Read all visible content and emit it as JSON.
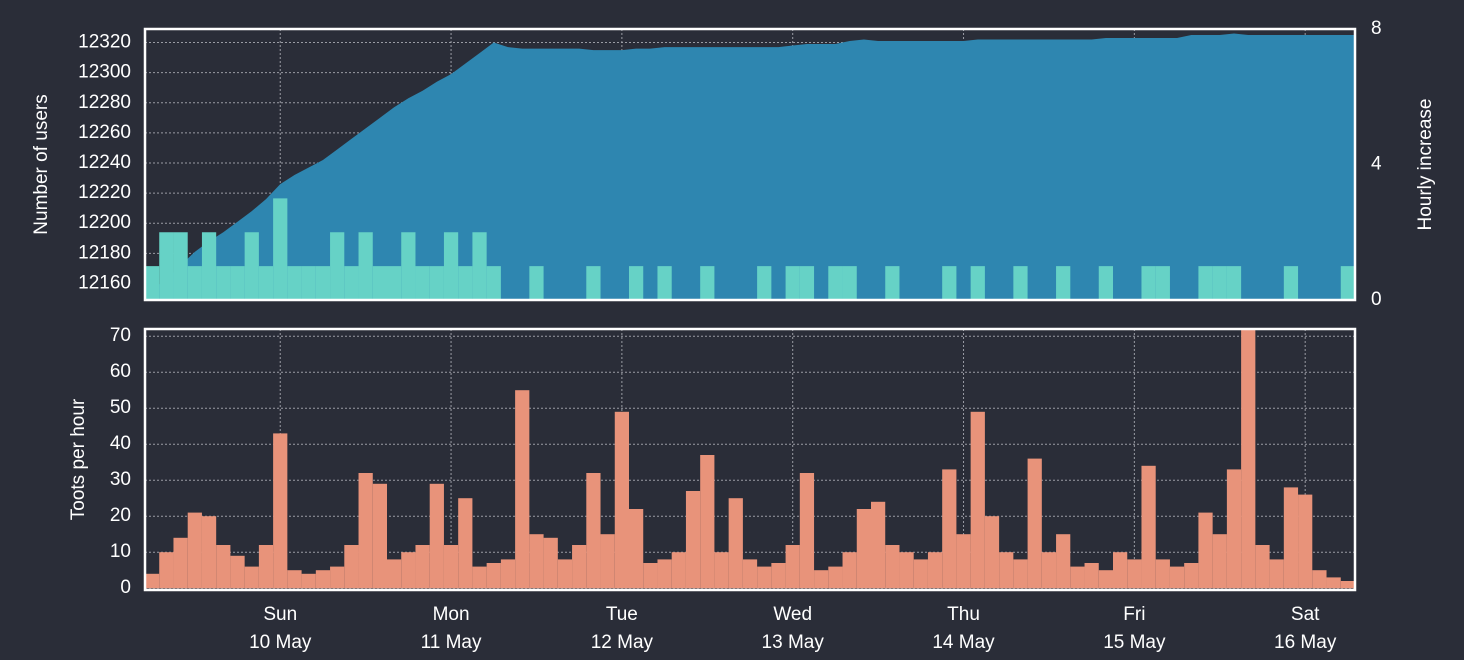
{
  "chart_data": [
    {
      "type": "area",
      "ylabel": "Number of users",
      "y2label": "Hourly increase",
      "ylim": [
        12149,
        12329
      ],
      "yticks": [
        12160,
        12180,
        12200,
        12220,
        12240,
        12260,
        12280,
        12300,
        12320
      ],
      "y2lim": [
        0,
        8
      ],
      "y2ticks": [
        0,
        4,
        8
      ],
      "grid": true,
      "series": [
        {
          "type": "area",
          "axis": "y",
          "color": "#2e86b0",
          "label_color": "#7ec8e8",
          "values": [
            12156,
            12163,
            12172,
            12181,
            12188,
            12194,
            12201,
            12208,
            12216,
            12226,
            12232,
            12237,
            12242,
            12249,
            12256,
            12263,
            12270,
            12277,
            12283,
            12288,
            12294,
            12299,
            12306,
            12313,
            12320,
            12317,
            12316,
            12316,
            12316,
            12316,
            12316,
            12315,
            12315,
            12315,
            12316,
            12316,
            12317,
            12317,
            12317,
            12317,
            12317,
            12317,
            12317,
            12317,
            12317,
            12318,
            12319,
            12319,
            12319,
            12321,
            12322,
            12321,
            12321,
            12321,
            12321,
            12321,
            12321,
            12321,
            12322,
            12322,
            12322,
            12322,
            12322,
            12322,
            12322,
            12322,
            12322,
            12323,
            12323,
            12323,
            12323,
            12323,
            12323,
            12325,
            12325,
            12325,
            12326,
            12325,
            12325,
            12325,
            12325,
            12325,
            12325,
            12325,
            12325
          ]
        },
        {
          "type": "bar",
          "axis": "y2",
          "color": "#66d2c6",
          "label_color": "#66d2c6",
          "values": [
            1,
            2,
            2,
            1,
            2,
            1,
            1,
            2,
            1,
            3,
            1,
            1,
            1,
            2,
            1,
            2,
            1,
            1,
            2,
            1,
            1,
            2,
            1,
            2,
            1,
            0,
            0,
            1,
            0,
            0,
            0,
            1,
            0,
            0,
            1,
            0,
            1,
            0,
            0,
            1,
            0,
            0,
            0,
            1,
            0,
            1,
            1,
            0,
            1,
            1,
            0,
            0,
            1,
            0,
            0,
            0,
            1,
            0,
            1,
            0,
            0,
            1,
            0,
            0,
            1,
            0,
            0,
            1,
            0,
            0,
            1,
            1,
            0,
            0,
            1,
            1,
            1,
            0,
            0,
            0,
            1,
            0,
            0,
            0,
            1
          ]
        }
      ]
    },
    {
      "type": "bar",
      "ylabel": "Toots per hour",
      "color": "#e8937a",
      "ylim": [
        -0.5,
        72
      ],
      "yticks": [
        0,
        10,
        20,
        30,
        40,
        50,
        60,
        70
      ],
      "grid": true,
      "categories": [
        null,
        null,
        null,
        null,
        null,
        null,
        null,
        null,
        null,
        "Sun\n10 May",
        null,
        null,
        null,
        null,
        null,
        null,
        null,
        null,
        null,
        null,
        null,
        "Mon\n11 May",
        null,
        null,
        null,
        null,
        null,
        null,
        null,
        null,
        null,
        null,
        null,
        "Tue\n12 May",
        null,
        null,
        null,
        null,
        null,
        null,
        null,
        null,
        null,
        null,
        null,
        "Wed\n13 May",
        null,
        null,
        null,
        null,
        null,
        null,
        null,
        null,
        null,
        null,
        null,
        "Thu\n14 May",
        null,
        null,
        null,
        null,
        null,
        null,
        null,
        null,
        null,
        null,
        null,
        "Fri\n15 May",
        null,
        null,
        null,
        null,
        null,
        null,
        null,
        null,
        null,
        null,
        null,
        "Sat\n16 May",
        null,
        null,
        null
      ],
      "values": [
        4,
        10,
        14,
        21,
        20,
        12,
        9,
        6,
        12,
        43,
        5,
        4,
        5,
        6,
        12,
        32,
        29,
        8,
        10,
        12,
        29,
        12,
        25,
        6,
        7,
        8,
        55,
        15,
        14,
        8,
        12,
        32,
        15,
        49,
        22,
        7,
        8,
        10,
        27,
        37,
        10,
        25,
        8,
        6,
        7,
        12,
        32,
        5,
        6,
        10,
        22,
        24,
        12,
        10,
        8,
        10,
        33,
        15,
        49,
        20,
        10,
        8,
        36,
        10,
        15,
        6,
        7,
        5,
        10,
        8,
        34,
        8,
        6,
        7,
        21,
        15,
        33,
        72,
        12,
        8,
        28,
        26,
        5,
        3,
        2
      ]
    }
  ]
}
